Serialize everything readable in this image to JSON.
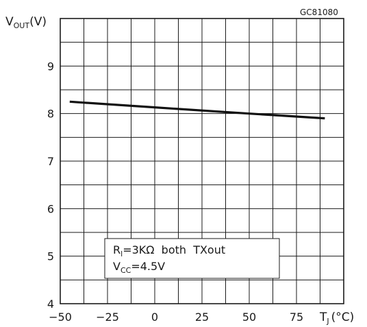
{
  "chart_data": {
    "type": "line",
    "code_label": "GC81080",
    "ylabel": {
      "main": "V",
      "sub": "OUT",
      "unit": "(V)"
    },
    "xlabel": {
      "main": "T",
      "sub": "J",
      "unit": "(°C)"
    },
    "xlim": [
      -50,
      100
    ],
    "ylim": [
      4,
      10
    ],
    "x_ticks": [
      -50,
      -25,
      0,
      25,
      50,
      75
    ],
    "x_tick_labels": [
      "−50",
      "−25",
      "0",
      "25",
      "50",
      "75"
    ],
    "y_ticks": [
      4,
      5,
      6,
      7,
      8,
      9
    ],
    "y_tick_labels": [
      "4",
      "5",
      "6",
      "7",
      "8",
      "9"
    ],
    "grid": true,
    "series": [
      {
        "x": [
          -45,
          0,
          50,
          90
        ],
        "y": [
          8.25,
          8.13,
          8.0,
          7.9
        ]
      }
    ],
    "annotation": {
      "line1": {
        "main": "R",
        "sub": "l",
        "rest": "=3KΩ  both  TXout"
      },
      "line2": {
        "main": "V",
        "sub": "CC",
        "rest": "=4.5V"
      }
    }
  }
}
